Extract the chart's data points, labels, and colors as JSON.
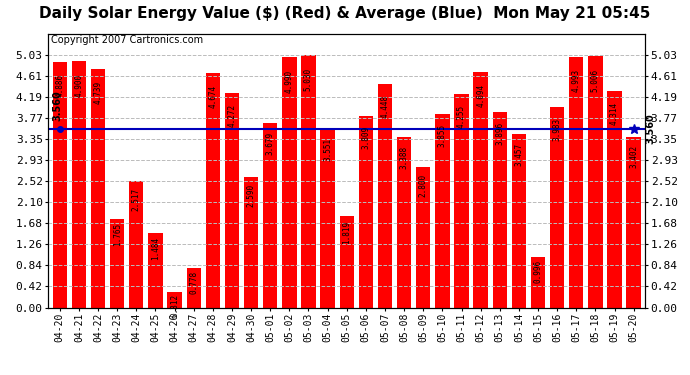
{
  "title": "Daily Solar Energy Value ($) (Red) & Average (Blue)  Mon May 21 05:45",
  "copyright": "Copyright 2007 Cartronics.com",
  "categories": [
    "04-20",
    "04-21",
    "04-22",
    "04-23",
    "04-24",
    "04-25",
    "04-26",
    "04-27",
    "04-28",
    "04-29",
    "04-30",
    "05-01",
    "05-02",
    "05-03",
    "05-04",
    "05-05",
    "05-06",
    "05-07",
    "05-08",
    "05-09",
    "05-10",
    "05-11",
    "05-12",
    "05-13",
    "05-14",
    "05-15",
    "05-16",
    "05-17",
    "05-18",
    "05-19",
    "05-20"
  ],
  "values": [
    4.886,
    4.9,
    4.739,
    1.765,
    2.517,
    1.484,
    0.312,
    0.778,
    4.674,
    4.272,
    2.59,
    3.679,
    4.99,
    5.03,
    3.551,
    1.819,
    3.809,
    4.448,
    3.388,
    2.8,
    3.855,
    4.255,
    4.694,
    3.896,
    3.457,
    0.996,
    3.983,
    4.993,
    5.006,
    4.314,
    3.402
  ],
  "average": 3.56,
  "bar_color": "#ff0000",
  "avg_line_color": "#0000bb",
  "background_color": "#ffffff",
  "plot_bg_color": "#ffffff",
  "grid_color": "#cccccc",
  "ylim": [
    0.0,
    5.45
  ],
  "yticks": [
    0.0,
    0.42,
    0.84,
    1.26,
    1.68,
    2.1,
    2.52,
    2.93,
    3.35,
    3.77,
    4.19,
    4.61,
    5.03
  ],
  "title_fontsize": 11,
  "copyright_fontsize": 7,
  "tick_fontsize": 8,
  "value_fontsize": 5.5,
  "avg_label": "3.560",
  "right_avg_label": "3.560"
}
